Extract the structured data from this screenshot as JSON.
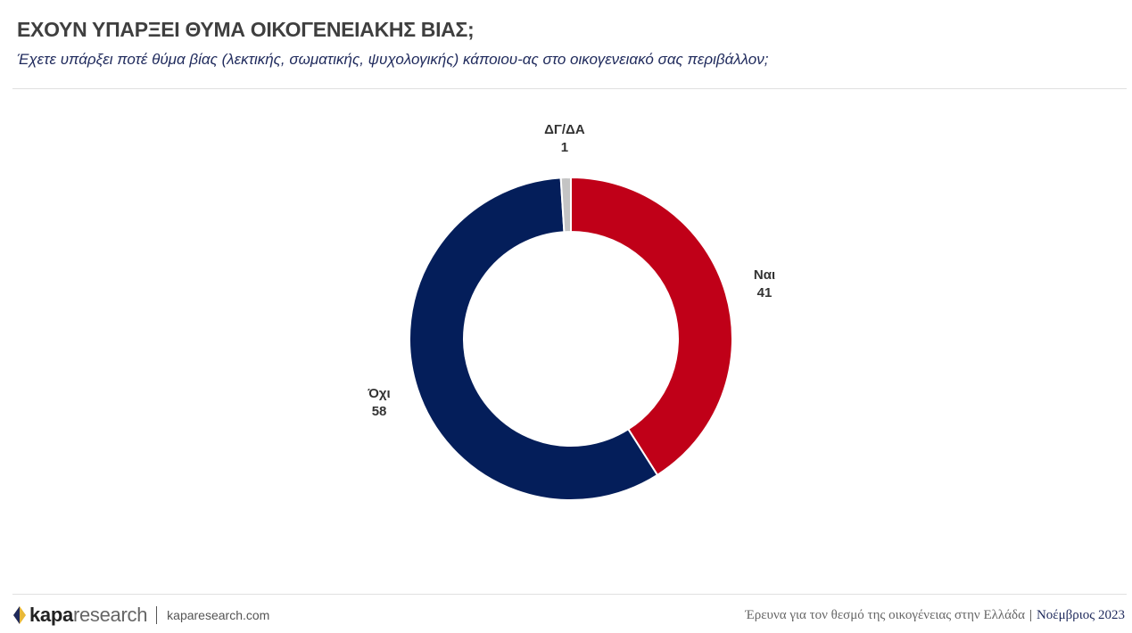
{
  "header": {
    "title": "ΕΧΟΥΝ ΥΠΑΡΞΕΙ ΘΥΜΑ ΟΙΚΟΓΕΝΕΙΑΚΗΣ ΒΙΑΣ;",
    "subtitle": "Έχετε υπάρξει ποτέ θύμα βίας (λεκτικής, σωματικής, ψυχολογικής) κάποιου-ας στο οικογενειακό σας περιβάλλον;"
  },
  "chart_data": {
    "type": "pie",
    "variant": "donut",
    "title": "",
    "slices": [
      {
        "label": "Ναι",
        "value": 41,
        "color": "#c00018"
      },
      {
        "label": "Όχι",
        "value": 58,
        "color": "#041e5a"
      },
      {
        "label": "ΔΓ/ΔΑ",
        "value": 1,
        "color": "#c4c4c4"
      }
    ],
    "start": "top",
    "direction": "clockwise",
    "legend": "none"
  },
  "footer": {
    "logo_bold": "kapa",
    "logo_light": "research",
    "url": "kaparesearch.com",
    "survey": "Έρευνα για τον θεσμό της οικογένειας στην Ελλάδα",
    "separator": "|",
    "date": "Νοέμβριος 2023"
  }
}
